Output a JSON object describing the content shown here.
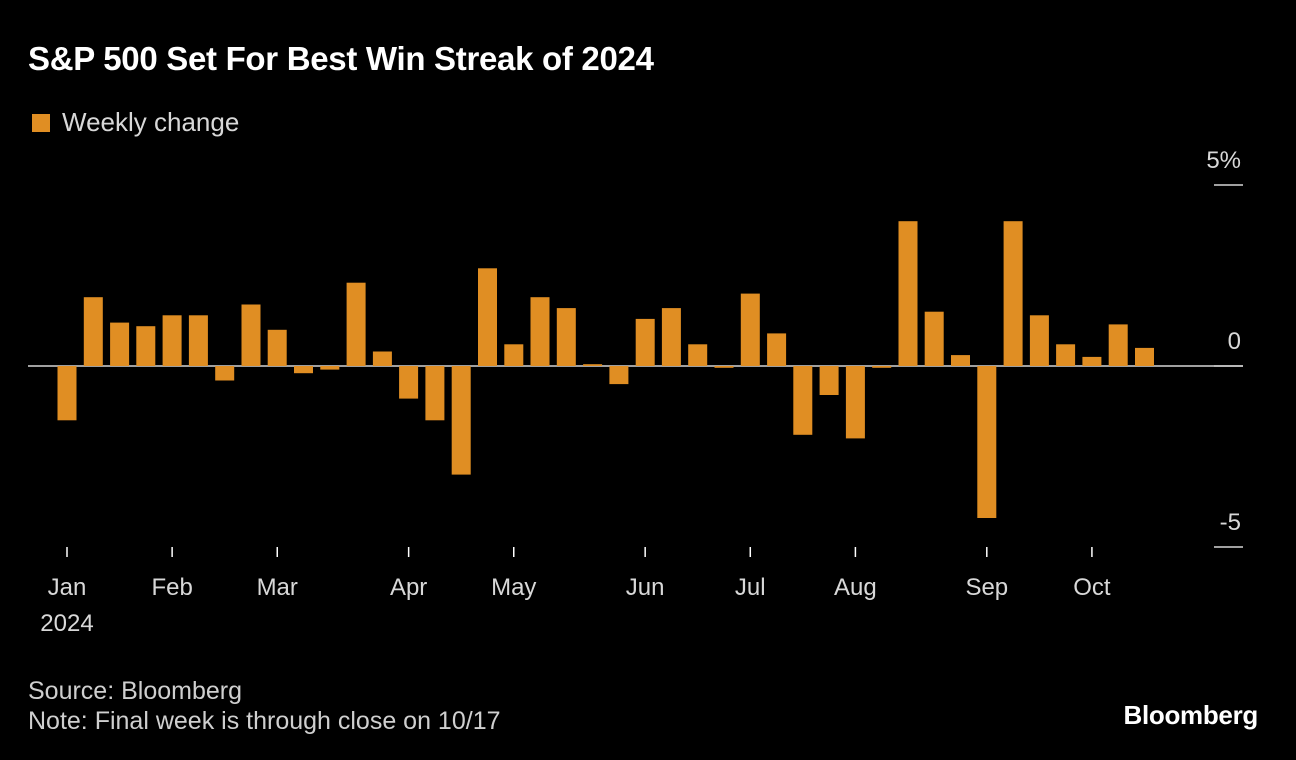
{
  "header": {
    "title": "S&P 500 Set For Best Win Streak of 2024"
  },
  "legend": {
    "label": "Weekly change",
    "color": "#e08e23"
  },
  "footer": {
    "source": "Source: Bloomberg",
    "note": "Note: Final week is through close on 10/17",
    "brand": "Bloomberg"
  },
  "chart_data": {
    "type": "bar",
    "title": "S&P 500 Set For Best Win Streak of 2024",
    "series": [
      {
        "name": "Weekly change",
        "color": "#e08e23",
        "values": [
          -1.5,
          1.9,
          1.2,
          1.1,
          1.4,
          1.4,
          -0.4,
          1.7,
          1.0,
          -0.2,
          -0.1,
          2.3,
          0.4,
          -0.9,
          -1.5,
          -3.0,
          2.7,
          0.6,
          1.9,
          1.6,
          0.05,
          -0.5,
          1.3,
          1.6,
          0.6,
          -0.05,
          2.0,
          0.9,
          -1.9,
          -0.8,
          -2.0,
          -0.05,
          4.0,
          1.5,
          0.3,
          -4.2,
          4.0,
          1.4,
          0.6,
          0.25,
          1.15,
          0.5
        ]
      }
    ],
    "x_labels": [
      {
        "label": "Jan",
        "index": 0
      },
      {
        "label": "Feb",
        "index": 4
      },
      {
        "label": "Mar",
        "index": 8
      },
      {
        "label": "Apr",
        "index": 13
      },
      {
        "label": "May",
        "index": 17
      },
      {
        "label": "Jun",
        "index": 22
      },
      {
        "label": "Jul",
        "index": 26
      },
      {
        "label": "Aug",
        "index": 30
      },
      {
        "label": "Sep",
        "index": 35
      },
      {
        "label": "Oct",
        "index": 39
      }
    ],
    "x_year_label": "2024",
    "y_ticks": [
      "5%",
      "0",
      "-5"
    ],
    "y_tick_values": [
      5,
      0,
      -5
    ],
    "ylim": [
      -5,
      5
    ],
    "ylabel": "",
    "xlabel": ""
  }
}
